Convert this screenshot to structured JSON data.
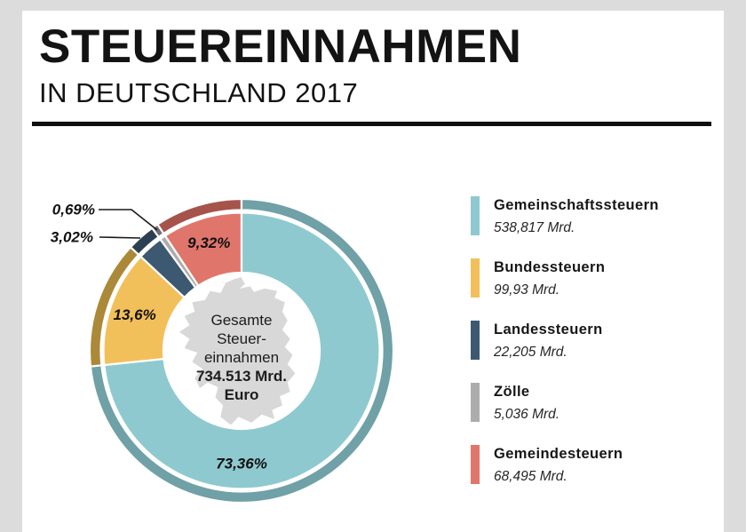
{
  "header": {
    "title": "STEUEREINNAHMEN",
    "subtitle": "IN DEUTSCHLAND 2017"
  },
  "colors": {
    "background": "#dcdcdc",
    "card": "#ffffff",
    "divider": "#0f0f0f",
    "map_silhouette": "#d8d8d8"
  },
  "chart_data": {
    "type": "pie",
    "donut": true,
    "title": "Steuereinnahmen in Deutschland 2017",
    "unit": "Mrd. Euro",
    "total_value": 734.513,
    "center_label": {
      "line1": "Gesamte",
      "line2": "Steuer-",
      "line3": "einnahmen",
      "total_line1": "734.513 Mrd.",
      "total_line2": "Euro"
    },
    "legend_position": "right",
    "segments": [
      {
        "name": "Gemeinschaftssteuern",
        "value": 538.817,
        "value_label": "538,817 Mrd.",
        "pct": 73.36,
        "pct_label": "73,36%",
        "color": "#8FC9D0",
        "dark_color": "#6FA1A7"
      },
      {
        "name": "Bundessteuern",
        "value": 99.93,
        "value_label": "99,93 Mrd.",
        "pct": 13.6,
        "pct_label": "13,6%",
        "color": "#F2C05A",
        "dark_color": "#AB8938"
      },
      {
        "name": "Landessteuern",
        "value": 22.205,
        "value_label": "22,205 Mrd.",
        "pct": 3.02,
        "pct_label": "3,02%",
        "color": "#3D5971",
        "dark_color": "#2C4052"
      },
      {
        "name": "Zölle",
        "value": 5.036,
        "value_label": "5,036 Mrd.",
        "pct": 0.69,
        "pct_label": "0,69%",
        "color": "#ACACAC",
        "dark_color": "#6E6E6E"
      },
      {
        "name": "Gemeindesteuern",
        "value": 68.495,
        "value_label": "68,495 Mrd.",
        "pct": 9.32,
        "pct_label": "9,32%",
        "color": "#E0766B",
        "dark_color": "#A6534B"
      }
    ]
  }
}
